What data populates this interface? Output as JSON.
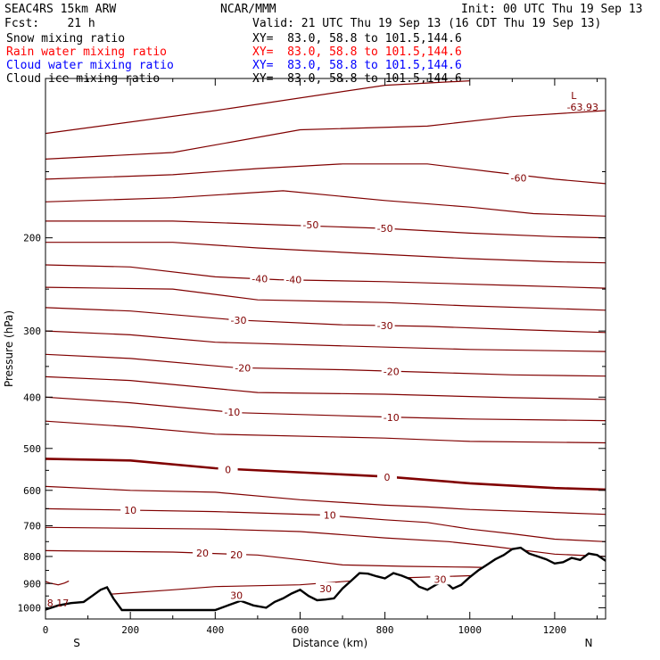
{
  "header": {
    "model": "SEAC4RS 15km ARW",
    "org": "NCAR/MMM",
    "init": "Init: 00 UTC Thu 19 Sep 13",
    "fcst": "Fcst:    21 h",
    "valid": "Valid: 21 UTC Thu 19 Sep 13 (16 CDT Thu 19 Sep 13)",
    "fields": [
      {
        "name": "Snow mixing ratio",
        "xy": "XY=  83.0, 58.8 to 101.5,144.6",
        "color": "#000000"
      },
      {
        "name": "Rain water mixing ratio",
        "xy": "XY=  83.0, 58.8 to 101.5,144.6",
        "color": "#ff0000"
      },
      {
        "name": "Cloud water mixing ratio",
        "xy": "XY=  83.0, 58.8 to 101.5,144.6",
        "color": "#0000ff"
      },
      {
        "name": "Cloud ice mixing ratio",
        "xy": "XY=  83.0, 58.8 to 101.5,144.6",
        "color": "#000000"
      }
    ]
  },
  "chart_data": {
    "type": "line",
    "xlabel": "Distance (km)",
    "ylabel": "Pressure (hPa)",
    "xlim": [
      0,
      1320
    ],
    "ylim": [
      1050,
      100
    ],
    "y_scale": "log",
    "x_ticks": [
      0,
      200,
      400,
      600,
      800,
      1000,
      1200
    ],
    "y_ticks": [
      200,
      300,
      400,
      500,
      600,
      700,
      800,
      900,
      1000
    ],
    "direction_left": "S",
    "direction_right": "N",
    "contour_color": "#800000",
    "low_marker": {
      "label": "L",
      "value": "-63.93",
      "x": 1245,
      "p": 112
    },
    "min_label": {
      "value": "8.17",
      "x": 8,
      "p": 980
    },
    "contours": [
      {
        "level": null,
        "points": [
          [
            0,
            127
          ],
          [
            400,
            115
          ],
          [
            800,
            103
          ],
          [
            1000,
            101
          ]
        ]
      },
      {
        "level": null,
        "points": [
          [
            0,
            142
          ],
          [
            300,
            138
          ],
          [
            600,
            125
          ],
          [
            900,
            123
          ],
          [
            1100,
            118
          ],
          [
            1320,
            115
          ]
        ]
      },
      {
        "level": -60,
        "points": [
          [
            0,
            155
          ],
          [
            300,
            152
          ],
          [
            500,
            148
          ],
          [
            700,
            145
          ],
          [
            900,
            145
          ],
          [
            1050,
            150
          ],
          [
            1200,
            155
          ],
          [
            1320,
            158
          ]
        ]
      },
      {
        "level": null,
        "points": [
          [
            0,
            171
          ],
          [
            300,
            168
          ],
          [
            560,
            163
          ],
          [
            800,
            170
          ],
          [
            1000,
            175
          ],
          [
            1150,
            180
          ],
          [
            1320,
            182
          ]
        ]
      },
      {
        "level": -50,
        "points": [
          [
            0,
            186
          ],
          [
            300,
            186
          ],
          [
            550,
            189
          ],
          [
            800,
            192
          ],
          [
            1000,
            196
          ],
          [
            1200,
            199
          ],
          [
            1320,
            200
          ]
        ]
      },
      {
        "level": null,
        "points": [
          [
            0,
            204
          ],
          [
            300,
            204
          ],
          [
            500,
            209
          ],
          [
            750,
            214
          ],
          [
            1000,
            219
          ],
          [
            1200,
            222
          ],
          [
            1320,
            223
          ]
        ]
      },
      {
        "level": -40,
        "points": [
          [
            0,
            225
          ],
          [
            200,
            227
          ],
          [
            400,
            237
          ],
          [
            550,
            240
          ],
          [
            800,
            242
          ],
          [
            1100,
            246
          ],
          [
            1320,
            249
          ]
        ]
      },
      {
        "level": null,
        "points": [
          [
            0,
            248
          ],
          [
            300,
            250
          ],
          [
            500,
            262
          ],
          [
            800,
            265
          ],
          [
            1000,
            269
          ],
          [
            1320,
            274
          ]
        ]
      },
      {
        "level": -30,
        "points": [
          [
            0,
            271
          ],
          [
            200,
            275
          ],
          [
            450,
            286
          ],
          [
            700,
            292
          ],
          [
            900,
            294
          ],
          [
            1100,
            298
          ],
          [
            1320,
            302
          ]
        ]
      },
      {
        "level": null,
        "points": [
          [
            0,
            300
          ],
          [
            200,
            305
          ],
          [
            400,
            315
          ],
          [
            700,
            320
          ],
          [
            1000,
            325
          ],
          [
            1320,
            328
          ]
        ]
      },
      {
        "level": -20,
        "points": [
          [
            0,
            332
          ],
          [
            200,
            338
          ],
          [
            450,
            352
          ],
          [
            700,
            355
          ],
          [
            900,
            359
          ],
          [
            1100,
            363
          ],
          [
            1320,
            365
          ]
        ]
      },
      {
        "level": null,
        "points": [
          [
            0,
            366
          ],
          [
            200,
            372
          ],
          [
            500,
            392
          ],
          [
            800,
            395
          ],
          [
            1100,
            401
          ],
          [
            1320,
            404
          ]
        ]
      },
      {
        "level": -10,
        "points": [
          [
            0,
            400
          ],
          [
            200,
            410
          ],
          [
            450,
            428
          ],
          [
            800,
            436
          ],
          [
            1000,
            440
          ],
          [
            1320,
            443
          ]
        ]
      },
      {
        "level": null,
        "points": [
          [
            0,
            444
          ],
          [
            200,
            455
          ],
          [
            400,
            470
          ],
          [
            800,
            478
          ],
          [
            1000,
            485
          ],
          [
            1320,
            488
          ]
        ]
      },
      {
        "level": 0,
        "bold": true,
        "points": [
          [
            0,
            523
          ],
          [
            200,
            527
          ],
          [
            400,
            545
          ],
          [
            800,
            565
          ],
          [
            1000,
            582
          ],
          [
            1200,
            594
          ],
          [
            1320,
            598
          ]
        ]
      },
      {
        "level": null,
        "points": [
          [
            0,
            590
          ],
          [
            200,
            600
          ],
          [
            400,
            605
          ],
          [
            600,
            625
          ],
          [
            800,
            640
          ],
          [
            900,
            645
          ],
          [
            1000,
            652
          ],
          [
            1320,
            666
          ]
        ]
      },
      {
        "level": 10,
        "points": [
          [
            0,
            650
          ],
          [
            400,
            658
          ],
          [
            650,
            668
          ],
          [
            800,
            682
          ],
          [
            900,
            690
          ],
          [
            1000,
            710
          ],
          [
            1100,
            725
          ],
          [
            1200,
            742
          ],
          [
            1320,
            750
          ]
        ]
      },
      {
        "level": null,
        "points": [
          [
            0,
            705
          ],
          [
            400,
            710
          ],
          [
            600,
            718
          ],
          [
            800,
            738
          ],
          [
            950,
            750
          ],
          [
            1050,
            765
          ],
          [
            1200,
            792
          ],
          [
            1320,
            800
          ]
        ]
      },
      {
        "level": 20,
        "points": [
          [
            0,
            780
          ],
          [
            300,
            785
          ],
          [
            500,
            795
          ],
          [
            620,
            815
          ],
          [
            700,
            830
          ],
          [
            850,
            835
          ],
          [
            1000,
            838
          ],
          [
            1200,
            845
          ],
          [
            1320,
            850
          ]
        ]
      },
      {
        "level": 30,
        "points": [
          [
            150,
            943
          ],
          [
            300,
            925
          ],
          [
            400,
            912
          ],
          [
            600,
            905
          ],
          [
            800,
            880
          ],
          [
            1000,
            870
          ],
          [
            1100,
            870
          ]
        ]
      },
      {
        "level": null,
        "points": [
          [
            0,
            892
          ],
          [
            10,
            898
          ],
          [
            30,
            905
          ],
          [
            45,
            898
          ],
          [
            55,
            890
          ]
        ]
      }
    ],
    "terrain": {
      "x": [
        0,
        30,
        60,
        90,
        110,
        130,
        145,
        160,
        180,
        200,
        300,
        400,
        430,
        460,
        490,
        520,
        540,
        560,
        580,
        600,
        620,
        640,
        660,
        680,
        700,
        720,
        740,
        760,
        780,
        800,
        820,
        840,
        860,
        880,
        900,
        920,
        940,
        960,
        980,
        1000,
        1020,
        1040,
        1060,
        1080,
        1100,
        1120,
        1140,
        1160,
        1180,
        1200,
        1220,
        1240,
        1260,
        1280,
        1300,
        1320
      ],
      "p": [
        1008,
        990,
        980,
        975,
        950,
        925,
        915,
        960,
        1010,
        1010,
        1010,
        1010,
        990,
        970,
        990,
        1000,
        975,
        960,
        940,
        925,
        950,
        968,
        965,
        960,
        920,
        890,
        860,
        862,
        872,
        880,
        860,
        870,
        883,
        912,
        925,
        905,
        890,
        920,
        905,
        875,
        850,
        830,
        810,
        795,
        775,
        770,
        790,
        800,
        810,
        825,
        820,
        805,
        812,
        790,
        795,
        815
      ]
    },
    "labels": [
      {
        "text": "-60",
        "x": 1115,
        "p": 154
      },
      {
        "text": "-50",
        "x": 625,
        "p": 189
      },
      {
        "text": "-50",
        "x": 800,
        "p": 192
      },
      {
        "text": "-40",
        "x": 505,
        "p": 239
      },
      {
        "text": "-40",
        "x": 585,
        "p": 240
      },
      {
        "text": "-30",
        "x": 455,
        "p": 286
      },
      {
        "text": "-30",
        "x": 800,
        "p": 293
      },
      {
        "text": "-20",
        "x": 465,
        "p": 352
      },
      {
        "text": "-20",
        "x": 815,
        "p": 358
      },
      {
        "text": "-10",
        "x": 440,
        "p": 427
      },
      {
        "text": "-10",
        "x": 815,
        "p": 437
      },
      {
        "text": "0",
        "x": 430,
        "p": 548
      },
      {
        "text": "0",
        "x": 805,
        "p": 567
      },
      {
        "text": "10",
        "x": 200,
        "p": 654
      },
      {
        "text": "10",
        "x": 670,
        "p": 668
      },
      {
        "text": "20",
        "x": 370,
        "p": 788
      },
      {
        "text": "20",
        "x": 450,
        "p": 794
      },
      {
        "text": "30",
        "x": 450,
        "p": 948
      },
      {
        "text": "30",
        "x": 660,
        "p": 920
      },
      {
        "text": "30",
        "x": 930,
        "p": 883
      }
    ]
  }
}
